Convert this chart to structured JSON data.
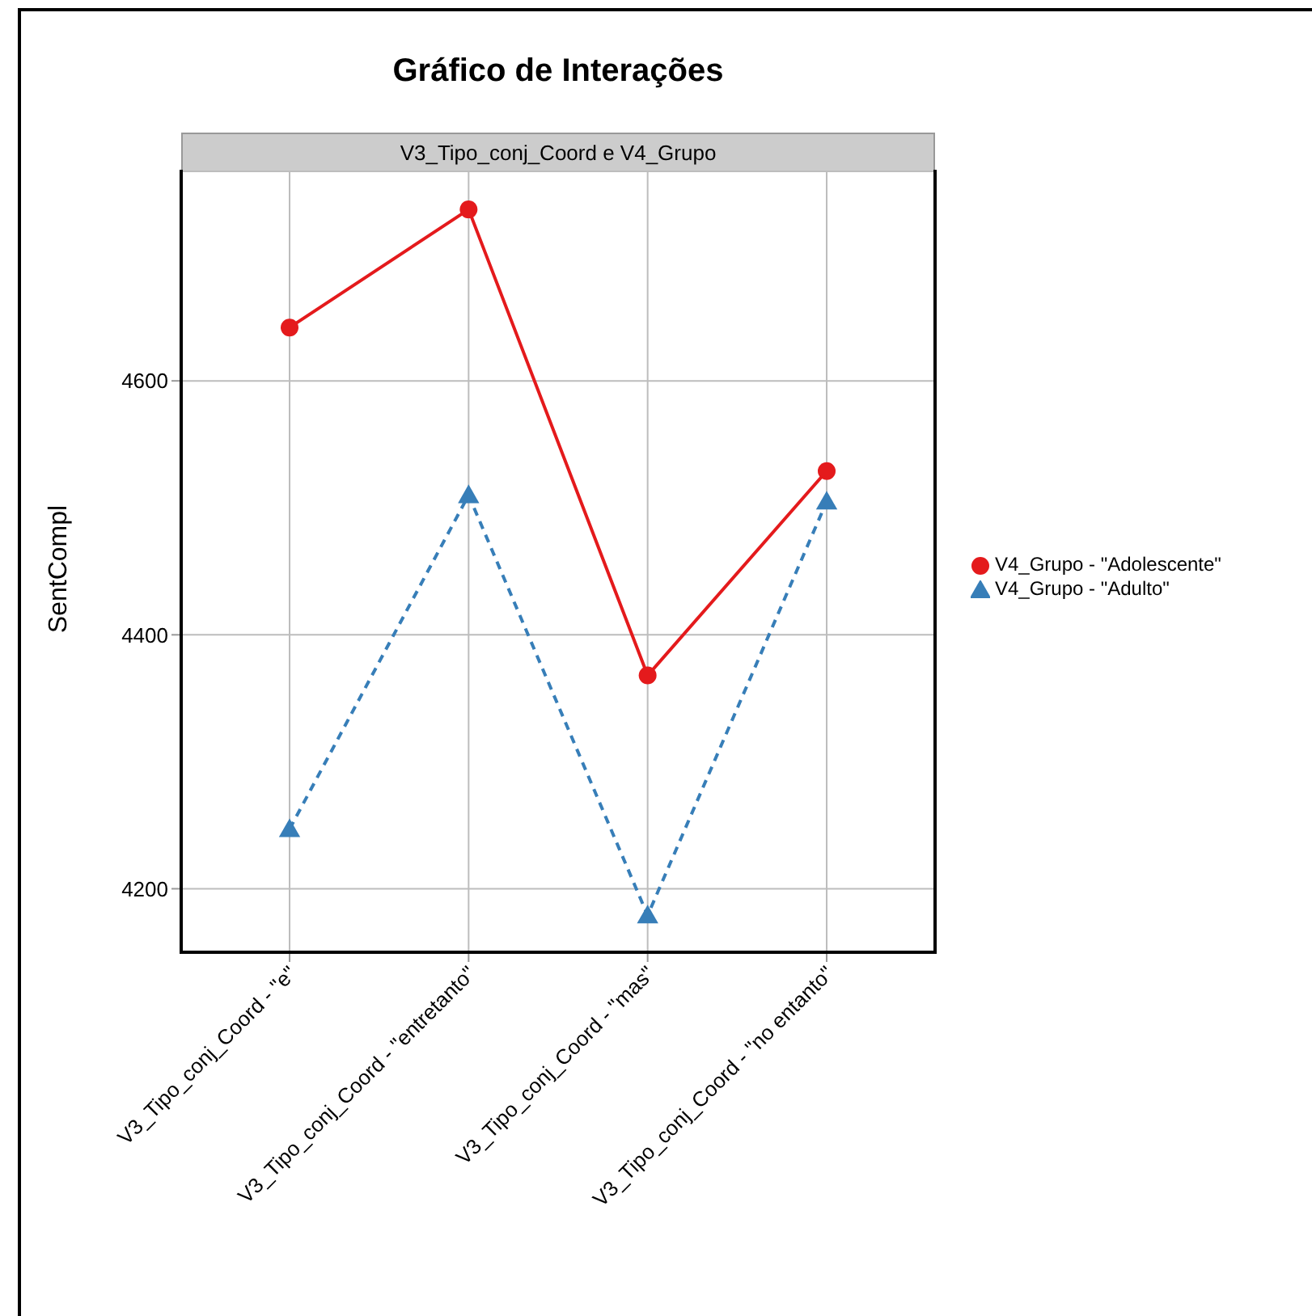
{
  "chart_data": {
    "type": "line",
    "title": "Gráfico de Interações",
    "subtitle": "V3_Tipo_conj_Coord e V4_Grupo",
    "ylabel": "SentCompl",
    "categories": [
      "V3_Tipo_conj_Coord - \"e\"",
      "V3_Tipo_conj_Coord - \"entretanto\"",
      "V3_Tipo_conj_Coord - \"mas\"",
      "V3_Tipo_conj_Coord - \"no entanto\""
    ],
    "series": [
      {
        "name": "V4_Grupo - \"Adolescente\"",
        "color": "#e41a1c",
        "values": [
          4642,
          4735,
          4368,
          4529
        ],
        "marker": "circle",
        "line_style": "solid"
      },
      {
        "name": "V4_Grupo - \"Adulto\"",
        "color": "#377eb8",
        "values": [
          4247,
          4510,
          4179,
          4505
        ],
        "marker": "triangle",
        "line_style": "dashed"
      }
    ],
    "ylim": [
      4150,
      4765
    ],
    "yticks": [
      4200,
      4400,
      4600
    ],
    "grid": true,
    "legend": "right"
  }
}
